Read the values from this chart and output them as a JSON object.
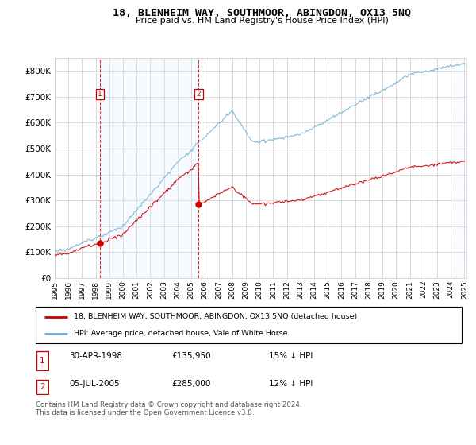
{
  "title": "18, BLENHEIM WAY, SOUTHMOOR, ABINGDON, OX13 5NQ",
  "subtitle": "Price paid vs. HM Land Registry's House Price Index (HPI)",
  "ylim": [
    0,
    850000
  ],
  "yticks": [
    0,
    100000,
    200000,
    300000,
    400000,
    500000,
    600000,
    700000,
    800000
  ],
  "xtick_years": [
    1995,
    1996,
    1997,
    1998,
    1999,
    2000,
    2001,
    2002,
    2003,
    2004,
    2005,
    2006,
    2007,
    2008,
    2009,
    2010,
    2011,
    2012,
    2013,
    2014,
    2015,
    2016,
    2017,
    2018,
    2019,
    2020,
    2021,
    2022,
    2023,
    2024,
    2025
  ],
  "hpi_color": "#6baed6",
  "price_color": "#cc0000",
  "vline_color": "#cc0000",
  "sale1_year": 1998.33,
  "sale1_price": 135950,
  "sale2_year": 2005.54,
  "sale2_price": 285000,
  "legend_title1": "18, BLENHEIM WAY, SOUTHMOOR, ABINGDON, OX13 5NQ (detached house)",
  "legend_title2": "HPI: Average price, detached house, Vale of White Horse",
  "table_rows": [
    {
      "num": "1",
      "date": "30-APR-1998",
      "price": "£135,950",
      "diff": "15% ↓ HPI"
    },
    {
      "num": "2",
      "date": "05-JUL-2005",
      "price": "£285,000",
      "diff": "12% ↓ HPI"
    }
  ],
  "footer": "Contains HM Land Registry data © Crown copyright and database right 2024.\nThis data is licensed under the Open Government Licence v3.0.",
  "background_color": "#ffffff",
  "grid_color": "#cccccc",
  "shaded_color": "#ddeeff",
  "hpi_discount_1": 0.85,
  "hpi_discount_2": 0.88
}
